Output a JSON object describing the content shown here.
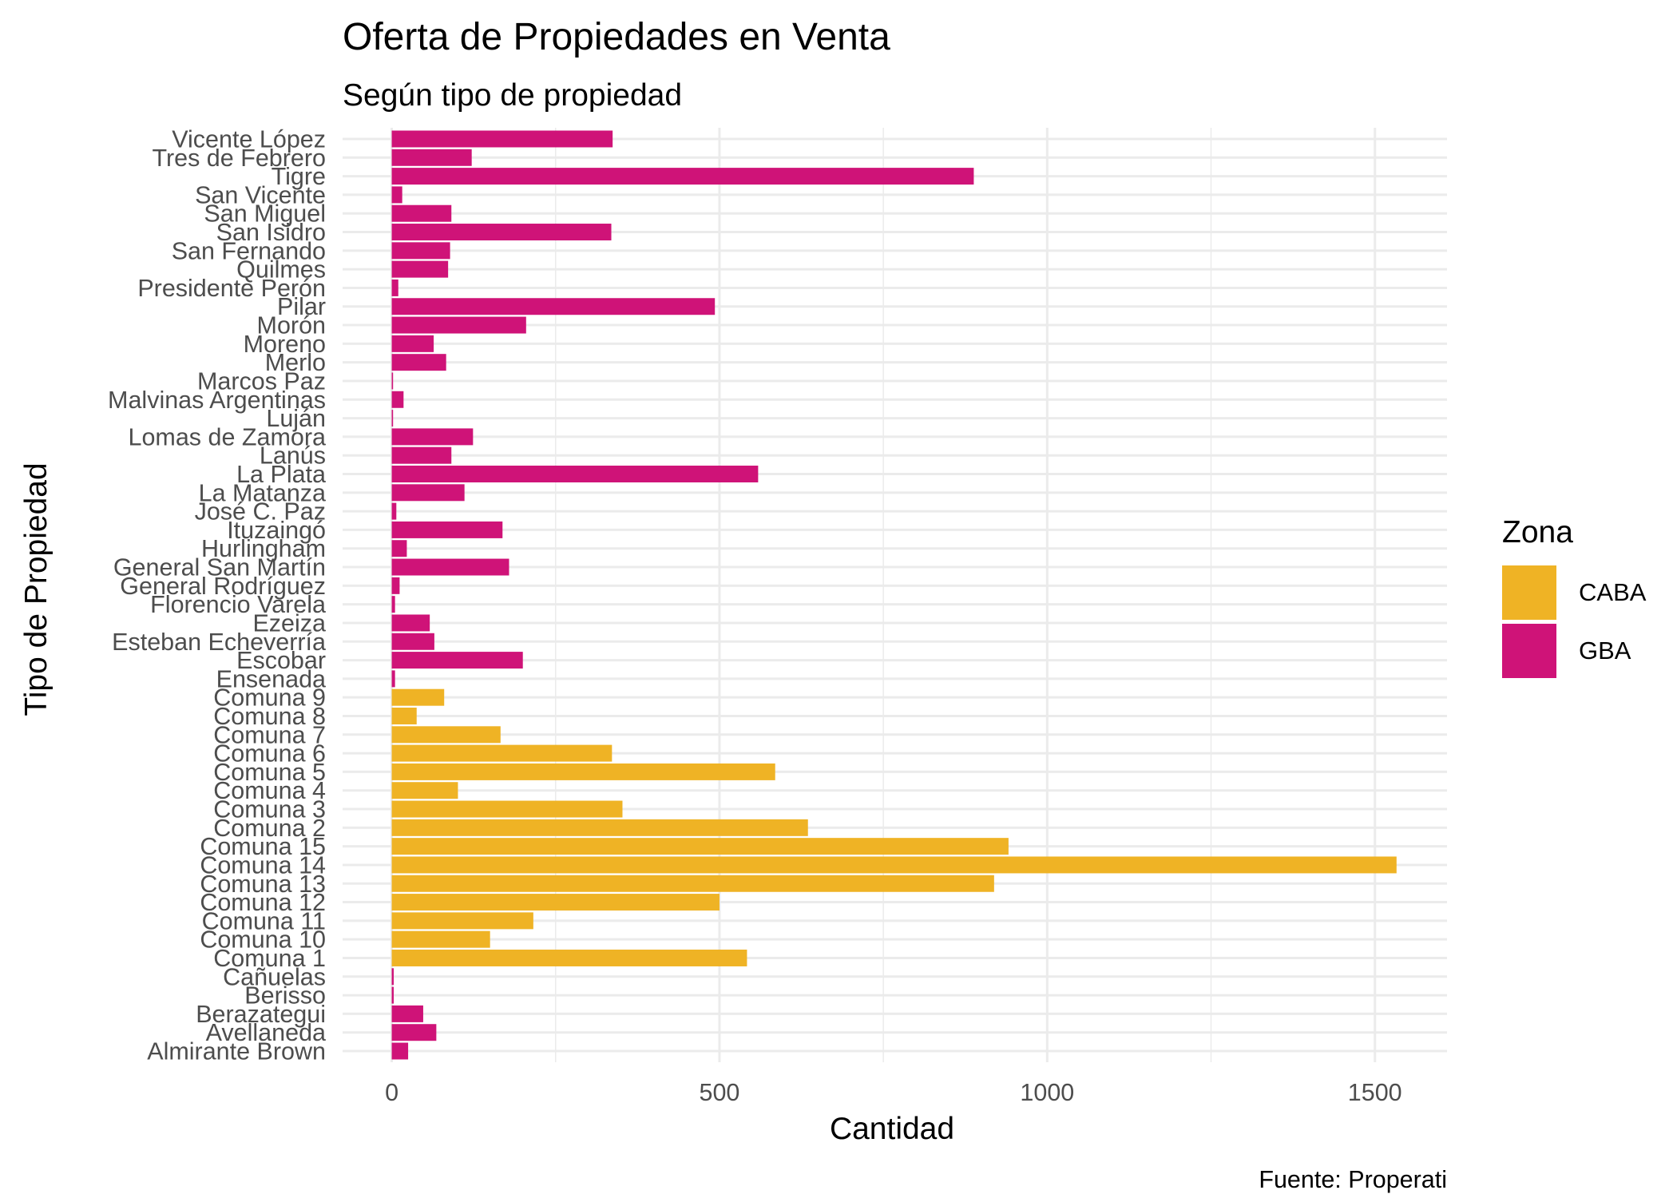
{
  "chart_data": {
    "type": "bar",
    "orientation": "horizontal",
    "title": "Oferta de Propiedades en Venta",
    "subtitle": "Según tipo de propiedad",
    "xlabel": "Cantidad",
    "ylabel": "Tipo de Propiedad",
    "caption": "Fuente: Properati",
    "xlim": [
      -75,
      1610
    ],
    "x_ticks": [
      0,
      500,
      1000,
      1500
    ],
    "grid": true,
    "legend": {
      "title": "Zona",
      "placement": "right",
      "entries": [
        {
          "label": "CABA",
          "color": "#EFB325"
        },
        {
          "label": "GBA",
          "color": "#CF1378"
        }
      ]
    },
    "categories": [
      "Almirante Brown",
      "Avellaneda",
      "Berazategui",
      "Berisso",
      "Cañuelas",
      "Comuna 1",
      "Comuna 10",
      "Comuna 11",
      "Comuna 12",
      "Comuna 13",
      "Comuna 14",
      "Comuna 15",
      "Comuna 2",
      "Comuna 3",
      "Comuna 4",
      "Comuna 5",
      "Comuna 6",
      "Comuna 7",
      "Comuna 8",
      "Comuna 9",
      "Ensenada",
      "Escobar",
      "Esteban Echeverría",
      "Ezeiza",
      "Florencio Varela",
      "General Rodríguez",
      "General San Martín",
      "Hurlingham",
      "Ituzaingó",
      "José C. Paz",
      "La Matanza",
      "La Plata",
      "Lanús",
      "Lomas de Zamora",
      "Luján",
      "Malvinas Argentinas",
      "Marcos Paz",
      "Merlo",
      "Moreno",
      "Morón",
      "Pilar",
      "Presidente Perón",
      "Quilmes",
      "San Fernando",
      "San Isidro",
      "San Miguel",
      "San Vicente",
      "Tigre",
      "Tres de Febrero",
      "Vicente López"
    ],
    "values": [
      25,
      68,
      48,
      3,
      3,
      542,
      150,
      216,
      500,
      919,
      1533,
      941,
      635,
      352,
      101,
      585,
      336,
      166,
      38,
      80,
      5,
      200,
      65,
      58,
      5,
      12,
      179,
      23,
      169,
      7,
      111,
      559,
      91,
      124,
      2,
      18,
      2,
      83,
      64,
      205,
      493,
      10,
      86,
      89,
      335,
      91,
      16,
      888,
      122,
      337
    ],
    "zones": [
      "GBA",
      "GBA",
      "GBA",
      "GBA",
      "GBA",
      "CABA",
      "CABA",
      "CABA",
      "CABA",
      "CABA",
      "CABA",
      "CABA",
      "CABA",
      "CABA",
      "CABA",
      "CABA",
      "CABA",
      "CABA",
      "CABA",
      "CABA",
      "GBA",
      "GBA",
      "GBA",
      "GBA",
      "GBA",
      "GBA",
      "GBA",
      "GBA",
      "GBA",
      "GBA",
      "GBA",
      "GBA",
      "GBA",
      "GBA",
      "GBA",
      "GBA",
      "GBA",
      "GBA",
      "GBA",
      "GBA",
      "GBA",
      "GBA",
      "GBA",
      "GBA",
      "GBA",
      "GBA",
      "GBA",
      "GBA",
      "GBA",
      "GBA"
    ]
  }
}
